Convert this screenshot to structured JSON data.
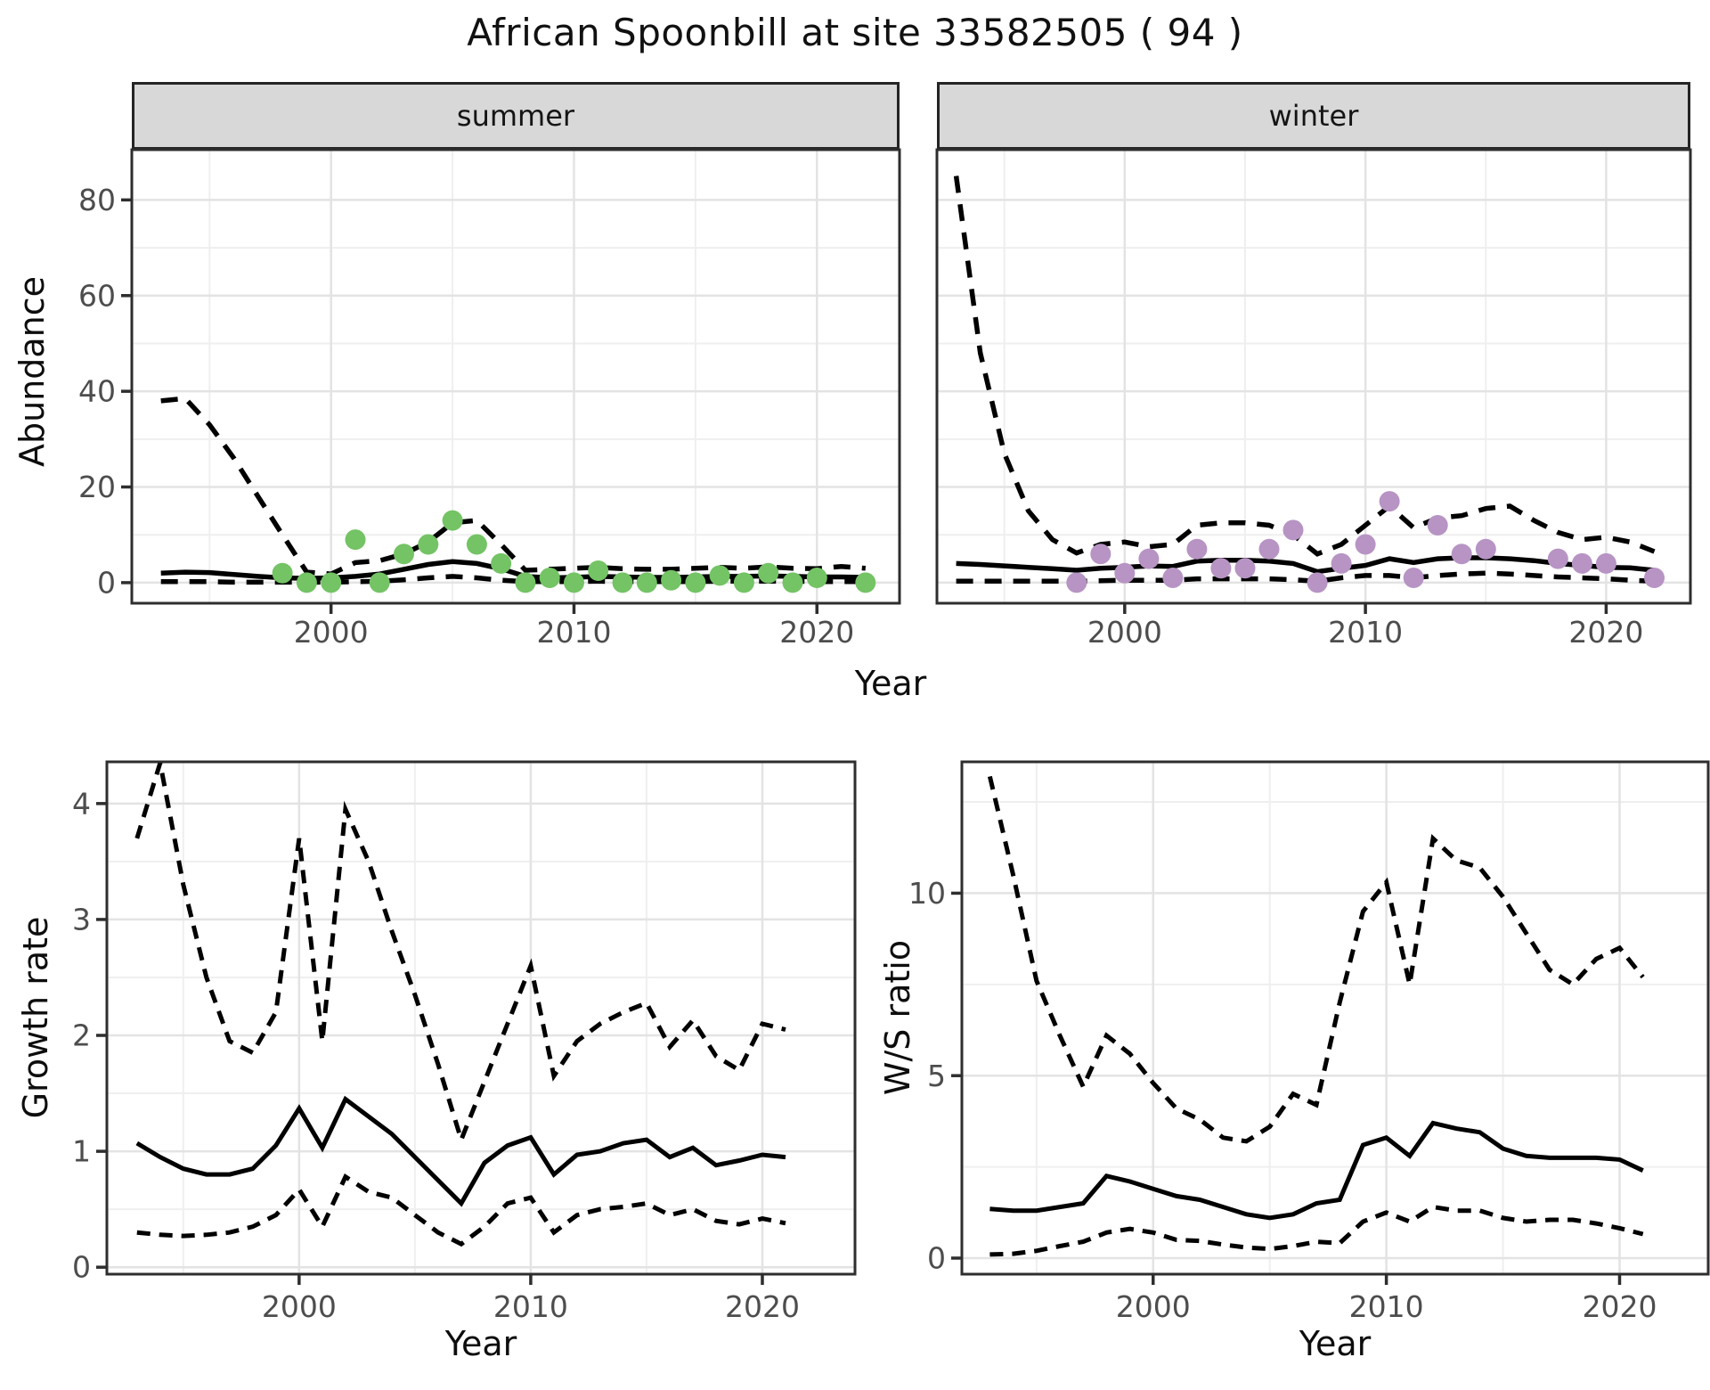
{
  "title": "African Spoonbill at site 33582505 ( 94 )",
  "axes": {
    "x": "Year",
    "y_abundance": "Abundance",
    "y_growth": "Growth rate",
    "y_ws": "W/S ratio"
  },
  "facets": [
    {
      "label": "summer"
    },
    {
      "label": "winter"
    }
  ],
  "colors": {
    "summer_points": "#74c365",
    "winter_points": "#b794c4",
    "line": "#000000",
    "strip_bg": "#d8d8d8",
    "grid_major": "#e3e3e3",
    "grid_minor": "#efefef",
    "axis_text": "#4d4d4d",
    "panel_border": "#2e2e2e"
  },
  "chart_data": [
    {
      "id": "abundance-summer",
      "type": "line",
      "facet": "summer",
      "xlabel": "Year",
      "ylabel": "Abundance",
      "xlim": [
        1991.8,
        2023.4
      ],
      "ylim": [
        -4.3,
        90.5
      ],
      "xticks": [
        2000,
        2010,
        2020
      ],
      "xminor": [
        1995,
        2005,
        2015
      ],
      "yticks": [
        0,
        20,
        40,
        60,
        80
      ],
      "yminor": [
        10,
        30,
        50,
        70
      ],
      "years": [
        1993,
        1994,
        1995,
        1996,
        1997,
        1998,
        1999,
        2000,
        2001,
        2002,
        2003,
        2004,
        2005,
        2006,
        2007,
        2008,
        2009,
        2010,
        2011,
        2012,
        2013,
        2014,
        2015,
        2016,
        2017,
        2018,
        2019,
        2020,
        2021,
        2022
      ],
      "series": [
        {
          "name": "median",
          "style": "solid",
          "values": [
            2.0,
            2.2,
            2.1,
            1.7,
            1.3,
            1.0,
            0.9,
            1.0,
            1.3,
            1.8,
            2.8,
            3.8,
            4.4,
            4.0,
            2.9,
            1.3,
            1.0,
            1.1,
            1.3,
            1.2,
            1.1,
            1.1,
            1.2,
            1.3,
            1.3,
            1.4,
            1.3,
            1.2,
            1.2,
            1.1
          ]
        },
        {
          "name": "upper_ci",
          "style": "dashed",
          "values": [
            38,
            38.5,
            33,
            26,
            18,
            10,
            2.2,
            1.8,
            4.2,
            4.6,
            6.0,
            8.5,
            12.5,
            13.0,
            8.0,
            2.6,
            2.8,
            3.0,
            3.2,
            2.9,
            2.8,
            2.8,
            3.0,
            3.2,
            3.0,
            3.3,
            3.0,
            2.9,
            3.4,
            3.0
          ]
        },
        {
          "name": "lower_ci",
          "style": "dashed",
          "values": [
            0.2,
            0.2,
            0.2,
            0.1,
            0.1,
            0.1,
            0.1,
            0.1,
            0.2,
            0.3,
            0.6,
            1.0,
            1.3,
            1.0,
            0.5,
            0.2,
            0.2,
            0.2,
            0.3,
            0.2,
            0.2,
            0.2,
            0.2,
            0.3,
            0.3,
            0.3,
            0.3,
            0.2,
            0.2,
            0.2
          ]
        }
      ],
      "points": {
        "name": "observed_counts",
        "color": "#74c365",
        "data": [
          [
            1998,
            2
          ],
          [
            1999,
            0
          ],
          [
            2000,
            0
          ],
          [
            2001,
            9
          ],
          [
            2002,
            0
          ],
          [
            2003,
            6
          ],
          [
            2004,
            8
          ],
          [
            2005,
            13
          ],
          [
            2006,
            8
          ],
          [
            2007,
            4
          ],
          [
            2008,
            0
          ],
          [
            2009,
            1
          ],
          [
            2010,
            0
          ],
          [
            2011,
            2.5
          ],
          [
            2012,
            0
          ],
          [
            2013,
            0
          ],
          [
            2014,
            0.5
          ],
          [
            2015,
            0
          ],
          [
            2016,
            1.5
          ],
          [
            2017,
            0
          ],
          [
            2018,
            2
          ],
          [
            2019,
            0
          ],
          [
            2020,
            1
          ],
          [
            2022,
            0
          ]
        ]
      }
    },
    {
      "id": "abundance-winter",
      "type": "line",
      "facet": "winter",
      "xlabel": "Year",
      "ylabel": "Abundance",
      "xlim": [
        1992.2,
        2023.5
      ],
      "ylim": [
        -4.3,
        90.5
      ],
      "xticks": [
        2000,
        2010,
        2020
      ],
      "xminor": [
        1995,
        2005,
        2015
      ],
      "yticks": [
        0,
        20,
        40,
        60,
        80
      ],
      "yminor": [
        10,
        30,
        50,
        70
      ],
      "years": [
        1993,
        1994,
        1995,
        1996,
        1997,
        1998,
        1999,
        2000,
        2001,
        2002,
        2003,
        2004,
        2005,
        2006,
        2007,
        2008,
        2009,
        2010,
        2011,
        2012,
        2013,
        2014,
        2015,
        2016,
        2017,
        2018,
        2019,
        2020,
        2021,
        2022
      ],
      "series": [
        {
          "name": "median",
          "style": "solid",
          "values": [
            4.0,
            3.8,
            3.5,
            3.2,
            2.9,
            2.6,
            3.0,
            3.2,
            3.5,
            3.4,
            4.5,
            4.7,
            4.7,
            4.5,
            4.0,
            2.3,
            3.0,
            3.6,
            5.0,
            4.2,
            5.0,
            5.2,
            5.2,
            5.0,
            4.6,
            4.0,
            3.6,
            3.2,
            3.1,
            2.6
          ]
        },
        {
          "name": "upper_ci",
          "style": "dashed",
          "values": [
            85,
            48,
            27,
            15,
            9,
            6.2,
            8,
            8.5,
            7.5,
            8,
            12,
            12.5,
            12.5,
            12,
            10,
            6,
            8,
            12,
            16,
            11.5,
            13.5,
            14,
            15.5,
            16,
            13,
            10.5,
            9,
            9.5,
            8.5,
            6.5
          ]
        },
        {
          "name": "lower_ci",
          "style": "dashed",
          "values": [
            0.3,
            0.3,
            0.3,
            0.3,
            0.3,
            0.3,
            0.4,
            0.5,
            0.5,
            0.5,
            0.8,
            0.8,
            0.8,
            0.8,
            0.6,
            0.3,
            1.0,
            1.5,
            1.5,
            1.0,
            1.5,
            1.8,
            2.0,
            1.8,
            1.5,
            1.2,
            1.0,
            0.8,
            0.5,
            0.3
          ]
        }
      ],
      "points": {
        "name": "observed_counts",
        "color": "#b794c4",
        "data": [
          [
            1998,
            0
          ],
          [
            1999,
            6
          ],
          [
            2000,
            2
          ],
          [
            2001,
            5
          ],
          [
            2002,
            1
          ],
          [
            2003,
            7
          ],
          [
            2004,
            3
          ],
          [
            2005,
            3
          ],
          [
            2006,
            7
          ],
          [
            2007,
            11
          ],
          [
            2008,
            0
          ],
          [
            2009,
            4
          ],
          [
            2010,
            8
          ],
          [
            2011,
            17
          ],
          [
            2012,
            1
          ],
          [
            2013,
            12
          ],
          [
            2014,
            6
          ],
          [
            2015,
            7
          ],
          [
            2018,
            5
          ],
          [
            2019,
            4
          ],
          [
            2020,
            4
          ],
          [
            2022,
            1
          ]
        ]
      }
    },
    {
      "id": "growth-rate",
      "type": "line",
      "xlabel": "Year",
      "ylabel": "Growth rate",
      "xlim": [
        1991.7,
        2024.0
      ],
      "ylim": [
        -0.06,
        4.36
      ],
      "xticks": [
        2000,
        2010,
        2020
      ],
      "xminor": [
        1995,
        2005,
        2015
      ],
      "yticks": [
        0,
        1,
        2,
        3,
        4
      ],
      "yminor": [
        0.5,
        1.5,
        2.5,
        3.5
      ],
      "years": [
        1993,
        1994,
        1995,
        1996,
        1997,
        1998,
        1999,
        2000,
        2001,
        2002,
        2003,
        2004,
        2005,
        2006,
        2007,
        2008,
        2009,
        2010,
        2011,
        2012,
        2013,
        2014,
        2015,
        2016,
        2017,
        2018,
        2019,
        2020,
        2021
      ],
      "series": [
        {
          "name": "median",
          "style": "solid",
          "values": [
            1.07,
            0.95,
            0.85,
            0.8,
            0.8,
            0.85,
            1.05,
            1.37,
            1.03,
            1.45,
            1.3,
            1.15,
            0.95,
            0.75,
            0.55,
            0.9,
            1.05,
            1.12,
            0.8,
            0.97,
            1.0,
            1.07,
            1.1,
            0.95,
            1.03,
            0.88,
            0.92,
            0.97,
            0.95
          ]
        },
        {
          "name": "upper_ci",
          "style": "dashed",
          "values": [
            3.7,
            4.35,
            3.3,
            2.5,
            1.95,
            1.85,
            2.2,
            3.7,
            1.95,
            3.95,
            3.5,
            2.9,
            2.35,
            1.75,
            1.1,
            1.6,
            2.1,
            2.6,
            1.65,
            1.95,
            2.1,
            2.2,
            2.28,
            1.9,
            2.13,
            1.82,
            1.7,
            2.1,
            2.05
          ]
        },
        {
          "name": "lower_ci",
          "style": "dashed",
          "values": [
            0.3,
            0.28,
            0.27,
            0.28,
            0.3,
            0.35,
            0.45,
            0.67,
            0.35,
            0.78,
            0.65,
            0.6,
            0.45,
            0.3,
            0.2,
            0.35,
            0.55,
            0.6,
            0.3,
            0.45,
            0.5,
            0.52,
            0.55,
            0.45,
            0.5,
            0.4,
            0.37,
            0.42,
            0.38
          ]
        }
      ]
    },
    {
      "id": "ws-ratio",
      "type": "line",
      "xlabel": "Year",
      "ylabel": "W/S ratio",
      "xlim": [
        1991.8,
        2023.8
      ],
      "ylim": [
        -0.44,
        13.6
      ],
      "xticks": [
        2000,
        2010,
        2020
      ],
      "xminor": [
        1995,
        2005,
        2015
      ],
      "yticks": [
        0,
        5,
        10
      ],
      "yminor": [
        2.5,
        7.5,
        12.5
      ],
      "years": [
        1993,
        1994,
        1995,
        1996,
        1997,
        1998,
        1999,
        2000,
        2001,
        2002,
        2003,
        2004,
        2005,
        2006,
        2007,
        2008,
        2009,
        2010,
        2011,
        2012,
        2013,
        2014,
        2015,
        2016,
        2017,
        2018,
        2019,
        2020,
        2021
      ],
      "series": [
        {
          "name": "median",
          "style": "solid",
          "values": [
            1.35,
            1.3,
            1.3,
            1.4,
            1.5,
            2.25,
            2.1,
            1.9,
            1.7,
            1.6,
            1.4,
            1.2,
            1.1,
            1.2,
            1.5,
            1.6,
            3.1,
            3.3,
            2.8,
            3.7,
            3.55,
            3.45,
            3.0,
            2.8,
            2.75,
            2.75,
            2.75,
            2.7,
            2.4
          ]
        },
        {
          "name": "upper_ci",
          "style": "dashed",
          "values": [
            13.2,
            10.5,
            7.6,
            6.1,
            4.7,
            6.1,
            5.6,
            4.8,
            4.1,
            3.8,
            3.3,
            3.2,
            3.6,
            4.5,
            4.2,
            7.0,
            9.5,
            10.3,
            7.5,
            11.5,
            10.9,
            10.7,
            9.9,
            8.9,
            7.9,
            7.5,
            8.2,
            8.5,
            7.7
          ]
        },
        {
          "name": "lower_ci",
          "style": "dashed",
          "values": [
            0.1,
            0.12,
            0.2,
            0.33,
            0.45,
            0.7,
            0.8,
            0.7,
            0.5,
            0.47,
            0.37,
            0.29,
            0.25,
            0.33,
            0.45,
            0.41,
            1.0,
            1.25,
            1.0,
            1.4,
            1.3,
            1.3,
            1.1,
            1.0,
            1.05,
            1.05,
            0.95,
            0.82,
            0.66
          ]
        }
      ]
    }
  ]
}
